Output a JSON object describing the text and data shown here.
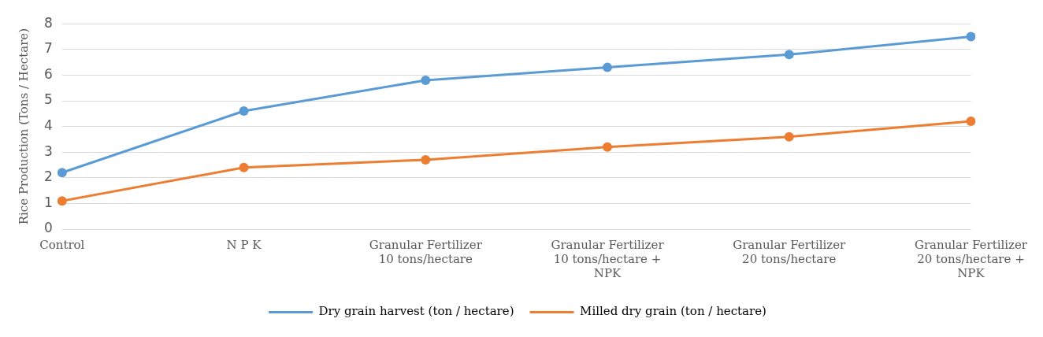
{
  "chart_data": {
    "type": "line",
    "ylabel": "Rice Production (Tons / Hectare)",
    "categories": [
      "Control",
      "N P K",
      "Granular Fertilizer 10 tons/hectare",
      "Granular Fertilizer 10 tons/hectare + NPK",
      "Granular Fertilizer 20 tons/hectare",
      "Granular Fertilizer 20 tons/hectare + NPK"
    ],
    "series": [
      {
        "name": "Dry grain harvest (ton / hectare)",
        "color": "#5b9bd5",
        "values": [
          2.2,
          4.6,
          5.8,
          6.3,
          6.8,
          7.5
        ]
      },
      {
        "name": "Milled dry grain (ton / hectare)",
        "color": "#ed7d31",
        "values": [
          1.1,
          2.4,
          2.7,
          3.2,
          3.6,
          4.2
        ]
      }
    ],
    "ylim": [
      0,
      8
    ],
    "yticks": [
      0,
      1,
      2,
      3,
      4,
      5,
      6,
      7,
      8
    ],
    "grid": "y",
    "legend": "bottom",
    "marker": "circle",
    "line_style": "solid"
  }
}
